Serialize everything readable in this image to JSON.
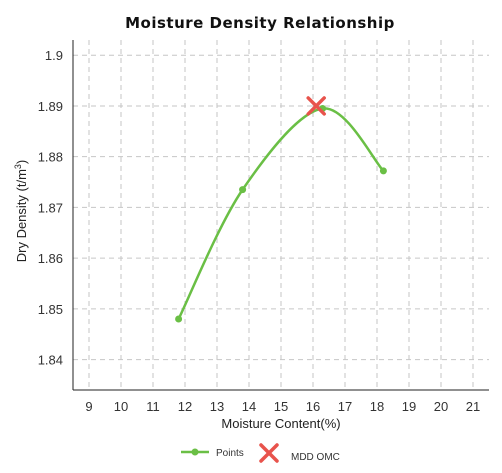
{
  "chart_data": {
    "type": "line",
    "title": "Moisture Density Relationship",
    "xlabel": "Moisture Content(%)",
    "ylabel": "Dry Density (t/m3)",
    "ylabel_unit_base": "Dry Density (t/m",
    "ylabel_unit_sup": "3",
    "ylabel_unit_close": ")",
    "xlim": [
      8.5,
      21.5
    ],
    "ylim": [
      1.834,
      1.903
    ],
    "x_ticks": [
      9,
      10,
      11,
      12,
      13,
      14,
      15,
      16,
      17,
      18,
      19,
      20,
      21
    ],
    "y_ticks": [
      1.84,
      1.85,
      1.86,
      1.87,
      1.88,
      1.89,
      1.9
    ],
    "y_tick_labels": [
      "1.84",
      "1.85",
      "1.86",
      "1.87",
      "1.88",
      "1.89",
      "1.9"
    ],
    "grid": true,
    "legend_position": "bottom",
    "series": [
      {
        "name": "Points",
        "color": "#6abf45",
        "x": [
          11.8,
          13.8,
          16.3,
          18.2
        ],
        "y": [
          1.848,
          1.8735,
          1.8895,
          1.8772
        ]
      }
    ],
    "mdd_omc": {
      "name": "MDD OMC",
      "color": "#e8534c",
      "x": 16.1,
      "y": 1.89
    }
  }
}
